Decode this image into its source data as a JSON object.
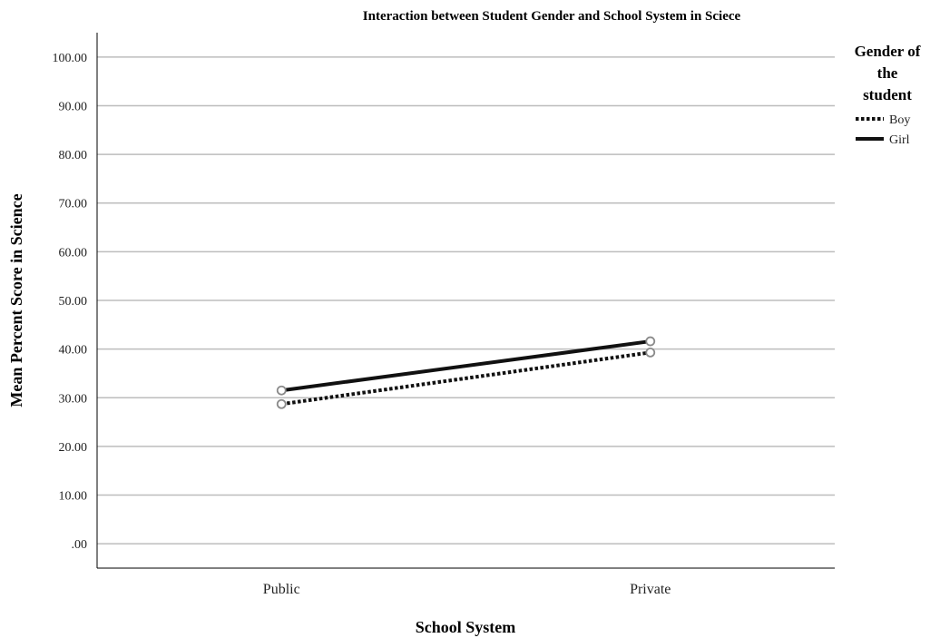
{
  "chart_data": {
    "type": "line",
    "title": "Interaction between Student Gender and School System in Sciece",
    "xlabel": "School System",
    "ylabel": "Mean Percent Score in Science",
    "categories": [
      "Public",
      "Private"
    ],
    "ylim": [
      -5,
      105
    ],
    "yticks": [
      0,
      10,
      20,
      30,
      40,
      50,
      60,
      70,
      80,
      90,
      100
    ],
    "ytick_labels": [
      ".00",
      "10.00",
      "20.00",
      "30.00",
      "40.00",
      "50.00",
      "60.00",
      "70.00",
      "80.00",
      "90.00",
      "100.00"
    ],
    "grid": true,
    "legend": {
      "title_lines": [
        "Gender of",
        "the",
        "student"
      ],
      "placement": "right"
    },
    "series": [
      {
        "name": "Boy",
        "values": [
          28.7,
          39.3
        ],
        "style": "dotted",
        "color": "#111111"
      },
      {
        "name": "Girl",
        "values": [
          31.5,
          41.6
        ],
        "style": "solid",
        "color": "#111111"
      }
    ]
  }
}
